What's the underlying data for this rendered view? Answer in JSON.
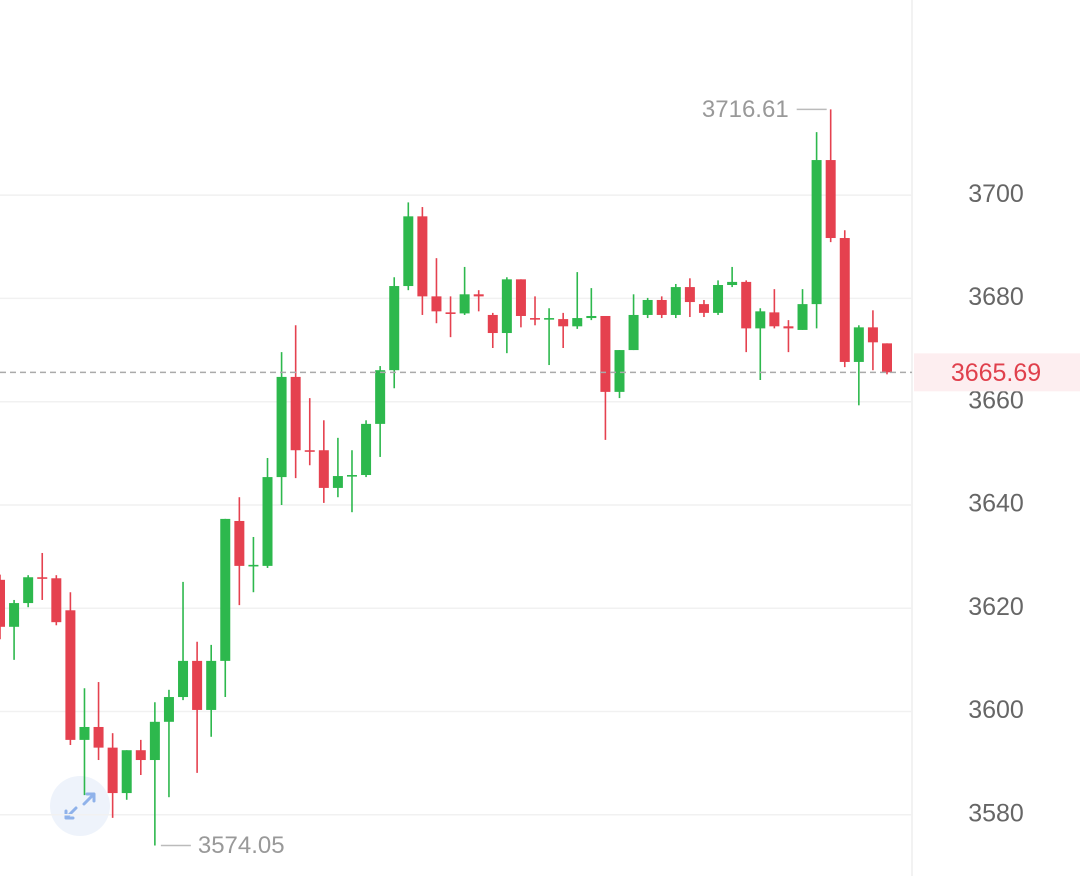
{
  "chart_data": {
    "type": "candlestick",
    "open": [
      3625.5,
      3616.4,
      3621,
      3626,
      3625.8,
      3619.6,
      3594.5,
      3597,
      3593,
      3584.2,
      3592.5,
      3590.6,
      3598,
      3602.8,
      3609.8,
      3600.3,
      3609.8,
      3636.9,
      3628.2,
      3628.2,
      3645.4,
      3664.8,
      3650.6,
      3650.6,
      3643.3,
      3645.6,
      3645.8,
      3655.7,
      3666.1,
      3682.4,
      3695.9,
      3680.4,
      3677.3,
      3677.1,
      3680.8,
      3676.8,
      3673.3,
      3683.7,
      3676.2,
      3676,
      3676,
      3674.6,
      3676.2,
      3676.6,
      3661.9,
      3670,
      3676.8,
      3679.7,
      3676.8,
      3682.2,
      3678.9,
      3677.2,
      3682.6,
      3683.2,
      3674.2,
      3677.3,
      3674.6,
      3673.9,
      3678.9,
      3706.8,
      3691.7,
      3667.7,
      3674.4,
      3671.3
    ],
    "high": [
      3626.5,
      3621.6,
      3626.4,
      3630.7,
      3626.4,
      3623.1,
      3604.5,
      3605.7,
      3595.8,
      3592.5,
      3594.5,
      3601.8,
      3604.2,
      3625.1,
      3613.5,
      3612.9,
      3637.3,
      3641.5,
      3633.8,
      3649.1,
      3669.6,
      3674.8,
      3660.7,
      3656.4,
      3653,
      3650.6,
      3656.4,
      3666.9,
      3684.1,
      3698.6,
      3697.7,
      3687.8,
      3680.4,
      3686.1,
      3681.6,
      3677.2,
      3684.1,
      3683.7,
      3680.4,
      3678.1,
      3677.2,
      3685.1,
      3682,
      3676.6,
      3670,
      3680.8,
      3680.1,
      3680.4,
      3682.8,
      3683.9,
      3679.7,
      3683.5,
      3686.1,
      3683.5,
      3678.1,
      3681.8,
      3675.8,
      3681.8,
      3712.2,
      3716.61,
      3693.2,
      3674.8,
      3677.7,
      3671.3
    ],
    "low": [
      3614,
      3610,
      3620.2,
      3621.6,
      3616.7,
      3593.5,
      3583.8,
      3590.6,
      3579.4,
      3582.9,
      3587.7,
      3574.05,
      3583.4,
      3602.2,
      3588.1,
      3595.1,
      3602.8,
      3620.6,
      3623.1,
      3627.8,
      3640,
      3645.2,
      3647.7,
      3640.4,
      3641.5,
      3638.6,
      3645.4,
      3649.3,
      3662.6,
      3681.6,
      3676.8,
      3675.2,
      3672.5,
      3676.8,
      3677.5,
      3670.4,
      3669.4,
      3674.4,
      3674.8,
      3667.1,
      3670.4,
      3674.1,
      3675.8,
      3652.6,
      3660.7,
      3670,
      3676.2,
      3676.2,
      3676.2,
      3676.4,
      3676.4,
      3676.8,
      3682.2,
      3669.6,
      3664.2,
      3674.2,
      3669.6,
      3673.9,
      3674.2,
      3690.9,
      3666.7,
      3659.3,
      3666.1,
      3665.3
    ],
    "close": [
      3616.4,
      3621,
      3626,
      3625.8,
      3617.3,
      3594.5,
      3597,
      3593,
      3584.2,
      3592.5,
      3590.6,
      3598,
      3602.8,
      3609.8,
      3600.3,
      3609.8,
      3637.3,
      3628.2,
      3628.4,
      3645.4,
      3664.8,
      3650.6,
      3650.4,
      3643.3,
      3645.6,
      3645.8,
      3655.7,
      3666.1,
      3682.4,
      3695.9,
      3680.4,
      3677.5,
      3677.1,
      3680.8,
      3680.4,
      3673.3,
      3683.7,
      3676.6,
      3676,
      3676.2,
      3674.6,
      3676.2,
      3676.6,
      3661.9,
      3670,
      3676.8,
      3679.7,
      3676.8,
      3682.2,
      3679.3,
      3677.2,
      3682.6,
      3683.2,
      3674.2,
      3677.5,
      3674.6,
      3674.2,
      3678.9,
      3706.8,
      3691.7,
      3667.7,
      3674.4,
      3671.5,
      3665.69
    ],
    "up_color": "#2db84d",
    "down_color": "#e5414f",
    "ylim": [
      3569.3,
      3737.8
    ],
    "yticks": [
      3580,
      3600,
      3620,
      3640,
      3660,
      3680,
      3700
    ],
    "grid": true,
    "max_label": 3716.61,
    "min_label": 3574.05,
    "last_price": 3665.69
  }
}
